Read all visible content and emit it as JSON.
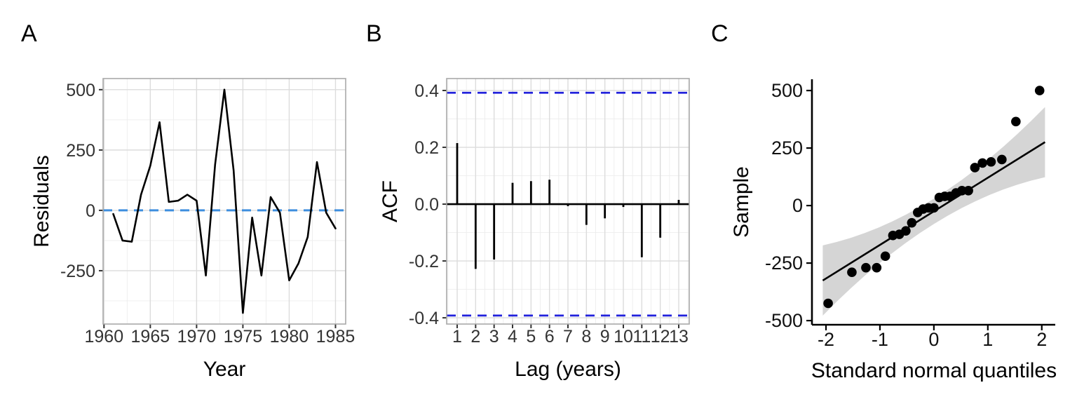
{
  "figure": {
    "background": "#FFFFFF",
    "panel_border_color": "#A9A9A9",
    "grid_major_color": "#DCDCDC",
    "grid_minor_color": "#EDEDED",
    "tick_color": "#333333"
  },
  "chart_data": [
    {
      "tag": "A",
      "type": "line",
      "title": "",
      "xlabel": "Year",
      "ylabel": "Residuals",
      "x": [
        1961,
        1962,
        1963,
        1964,
        1965,
        1966,
        1967,
        1968,
        1969,
        1970,
        1971,
        1972,
        1973,
        1974,
        1975,
        1976,
        1977,
        1978,
        1979,
        1980,
        1981,
        1982,
        1983,
        1984,
        1985
      ],
      "y": [
        -15,
        -125,
        -130,
        65,
        185,
        365,
        35,
        40,
        65,
        40,
        -270,
        190,
        500,
        165,
        -425,
        -30,
        -270,
        55,
        -10,
        -290,
        -220,
        -110,
        200,
        -10,
        -75
      ],
      "line_color": "#000000",
      "ref_line_y": 0,
      "ref_line_style": "dashed",
      "ref_line_color": "#3E8EDE",
      "xlim": [
        1959.9,
        1986.1
      ],
      "ylim": [
        -471,
        546
      ],
      "x_tick_values": [
        1960,
        1965,
        1970,
        1975,
        1980,
        1985
      ],
      "x_tick_labels": [
        "1960",
        "1965",
        "1970",
        "1975",
        "1980",
        "1985"
      ],
      "x_minor": [
        1962.5,
        1967.5,
        1972.5,
        1977.5,
        1982.5
      ],
      "y_tick_values": [
        500,
        250,
        0,
        -250
      ],
      "y_tick_labels": [
        "500",
        "250",
        "0",
        "-250"
      ],
      "y_minor": [
        375,
        125,
        -125,
        -375
      ],
      "grid": true,
      "legend": "none"
    },
    {
      "tag": "B",
      "type": "bar",
      "title": "",
      "xlabel": "Lag (years)",
      "ylabel": "ACF",
      "categories": [
        1,
        2,
        3,
        4,
        5,
        6,
        7,
        8,
        9,
        10,
        11,
        12,
        13
      ],
      "values": [
        0.215,
        -0.228,
        -0.195,
        0.075,
        0.081,
        0.086,
        -0.007,
        -0.073,
        -0.05,
        -0.01,
        -0.187,
        -0.118,
        0.015
      ],
      "bar_color": "#000000",
      "conf_bound": 0.392,
      "conf_line_style": "dashed",
      "conf_line_color": "#2121DC",
      "xlim": [
        0.43,
        13.57
      ],
      "ylim": [
        -0.422,
        0.442
      ],
      "x_tick_labels": [
        "1",
        "2",
        "3",
        "4",
        "5",
        "6",
        "7",
        "8",
        "9",
        "10",
        "11",
        "12",
        "13"
      ],
      "y_tick_values": [
        0.4,
        0.2,
        0,
        -0.2,
        -0.4
      ],
      "y_tick_labels": [
        "0.4",
        "0.2",
        "0.0",
        "-0.2",
        "-0.4"
      ],
      "y_minor": [
        0.3,
        0.1,
        -0.1,
        -0.3
      ],
      "grid": true,
      "legend": "none"
    },
    {
      "tag": "C",
      "type": "scatter",
      "title": "",
      "xlabel": "Standard normal quantiles",
      "ylabel": "Sample",
      "points": {
        "x": [
          -1.96,
          -1.52,
          -1.26,
          -1.06,
          -0.9,
          -0.76,
          -0.64,
          -0.52,
          -0.41,
          -0.3,
          -0.2,
          -0.1,
          0.0,
          0.1,
          0.2,
          0.3,
          0.41,
          0.52,
          0.64,
          0.76,
          0.9,
          1.06,
          1.26,
          1.52,
          1.96
        ],
        "y": [
          -425,
          -290,
          -270,
          -270,
          -220,
          -130,
          -125,
          -110,
          -75,
          -30,
          -15,
          -10,
          -10,
          35,
          40,
          40,
          55,
          65,
          65,
          165,
          185,
          190,
          200,
          365,
          500
        ]
      },
      "point_color": "#000000",
      "fit_line": {
        "slope": 146,
        "intercept": -25,
        "q_range": [
          -2.06,
          2.06
        ],
        "color": "#000000"
      },
      "band": {
        "halfwidth_base": 55,
        "halfwidth_quad": 23,
        "color": "#D5D5D5"
      },
      "xlim": [
        -2.26,
        2.25
      ],
      "ylim": [
        -518,
        549
      ],
      "x_tick_values": [
        -2,
        -1,
        0,
        1,
        2
      ],
      "x_tick_labels": [
        "-2",
        "-1",
        "0",
        "1",
        "2"
      ],
      "y_tick_values": [
        500,
        250,
        0,
        -250,
        -500
      ],
      "y_tick_labels": [
        "500",
        "250",
        "0",
        "-250",
        "-500"
      ],
      "grid": false,
      "legend": "none"
    }
  ]
}
